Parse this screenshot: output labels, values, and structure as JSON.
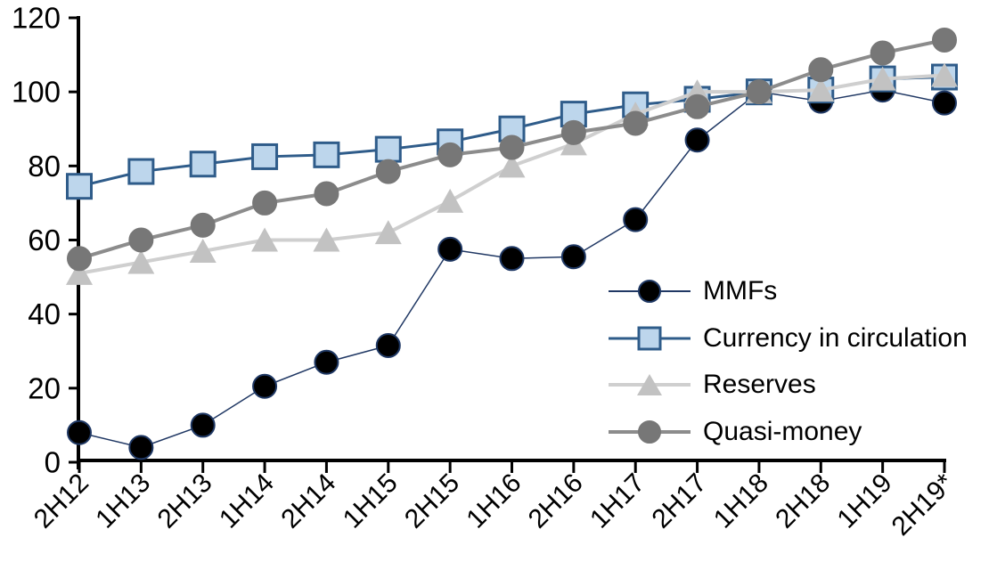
{
  "chart_data": {
    "type": "line",
    "title": "",
    "xlabel": "",
    "ylabel": "",
    "grid": false,
    "legend_position": "inside-right",
    "ylim": [
      0,
      120
    ],
    "yticks": [
      0,
      20,
      40,
      60,
      80,
      100,
      120
    ],
    "categories": [
      "2H12",
      "1H13",
      "2H13",
      "1H14",
      "2H14",
      "1H15",
      "2H15",
      "1H16",
      "2H16",
      "1H17",
      "2H17",
      "1H18",
      "2H18",
      "1H19",
      "2H19*"
    ],
    "series": [
      {
        "name": "MMFs",
        "marker": "circle",
        "marker_fill": "#000000",
        "marker_stroke": "#1F3864",
        "line_color": "#203864",
        "line_width": 1.5,
        "values": [
          8,
          4,
          10,
          20.5,
          27,
          31.5,
          57.5,
          55,
          55.5,
          65.5,
          87,
          100,
          97.5,
          100.5,
          97
        ]
      },
      {
        "name": "Currency in circulation",
        "marker": "square",
        "marker_fill": "#BDD6EC",
        "marker_stroke": "#2F5C8A",
        "line_color": "#2F5C8A",
        "line_width": 3,
        "values": [
          74.5,
          78.5,
          80.5,
          82.5,
          83,
          84.5,
          86.5,
          90,
          94,
          96.5,
          98,
          100,
          100.5,
          103.5,
          104
        ]
      },
      {
        "name": "Reserves",
        "marker": "triangle",
        "marker_fill": "#C2C2C2",
        "marker_stroke": "#C2C2C2",
        "line_color": "#CFCFCF",
        "line_width": 4,
        "values": [
          51,
          54,
          57,
          60,
          60,
          62,
          70.5,
          80,
          86,
          94,
          100,
          100,
          100.5,
          103.5,
          104.5
        ]
      },
      {
        "name": "Quasi-money",
        "marker": "circle",
        "marker_fill": "#777777",
        "marker_stroke": "#777777",
        "line_color": "#8C8C8C",
        "line_width": 4,
        "values": [
          55,
          60,
          64,
          70,
          72.5,
          78.5,
          83,
          85,
          89,
          91.5,
          96,
          100,
          106,
          110.5,
          114
        ]
      }
    ]
  },
  "colors": {
    "background": "#FFFFFF",
    "axis": "#000000",
    "tick_label": "#000000",
    "legend_text": "#000000"
  }
}
